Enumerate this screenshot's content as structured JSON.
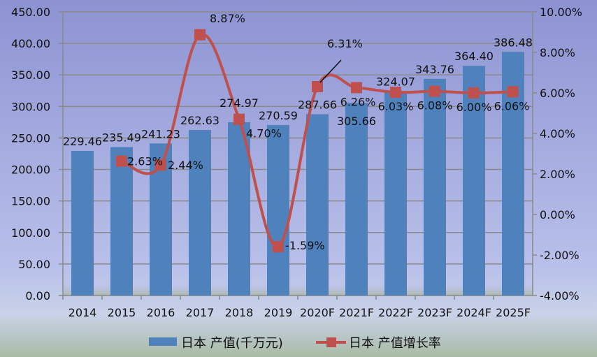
{
  "chart_data": {
    "type": "bar+line",
    "categories": [
      "2014",
      "2015",
      "2016",
      "2017",
      "2018",
      "2019",
      "2020F",
      "2021F",
      "2022F",
      "2023F",
      "2024F",
      "2025F"
    ],
    "series": [
      {
        "name": "日本 产值(千万元)",
        "type": "bar",
        "axis": "left",
        "color": "#4f81bd",
        "values": [
          229.46,
          235.49,
          241.23,
          262.63,
          274.97,
          270.59,
          287.66,
          305.66,
          324.07,
          343.76,
          364.4,
          386.48
        ],
        "labels": [
          "229.46",
          "235.49",
          "241.23",
          "262.63",
          "274.97",
          "270.59",
          "287.66",
          "305.66",
          "324.07",
          "343.76",
          "364.40",
          "386.48"
        ]
      },
      {
        "name": "日本 产值增长率",
        "type": "line",
        "axis": "right",
        "color": "#c0504d",
        "smooth": true,
        "values": [
          null,
          2.63,
          2.44,
          8.87,
          4.7,
          -1.59,
          6.31,
          6.26,
          6.03,
          6.08,
          6.0,
          6.06
        ],
        "labels": [
          "",
          "2.63%",
          "2.44%",
          "8.87%",
          "4.70%",
          "-1.59%",
          "6.31%",
          "6.26%",
          "6.03%",
          "6.08%",
          "6.00%",
          "6.06%"
        ]
      }
    ],
    "left_axis": {
      "range": [
        0,
        450
      ],
      "step": 50,
      "ticks": [
        "0.00",
        "50.00",
        "100.00",
        "150.00",
        "200.00",
        "250.00",
        "300.00",
        "350.00",
        "400.00",
        "450.00"
      ]
    },
    "right_axis": {
      "range": [
        -4,
        10
      ],
      "step": 2,
      "unit": "%",
      "ticks": [
        "-4.00%",
        "-2.00%",
        "0.00%",
        "2.00%",
        "4.00%",
        "6.00%",
        "8.00%",
        "10.00%"
      ]
    },
    "grid": true,
    "legend": "bottom"
  }
}
